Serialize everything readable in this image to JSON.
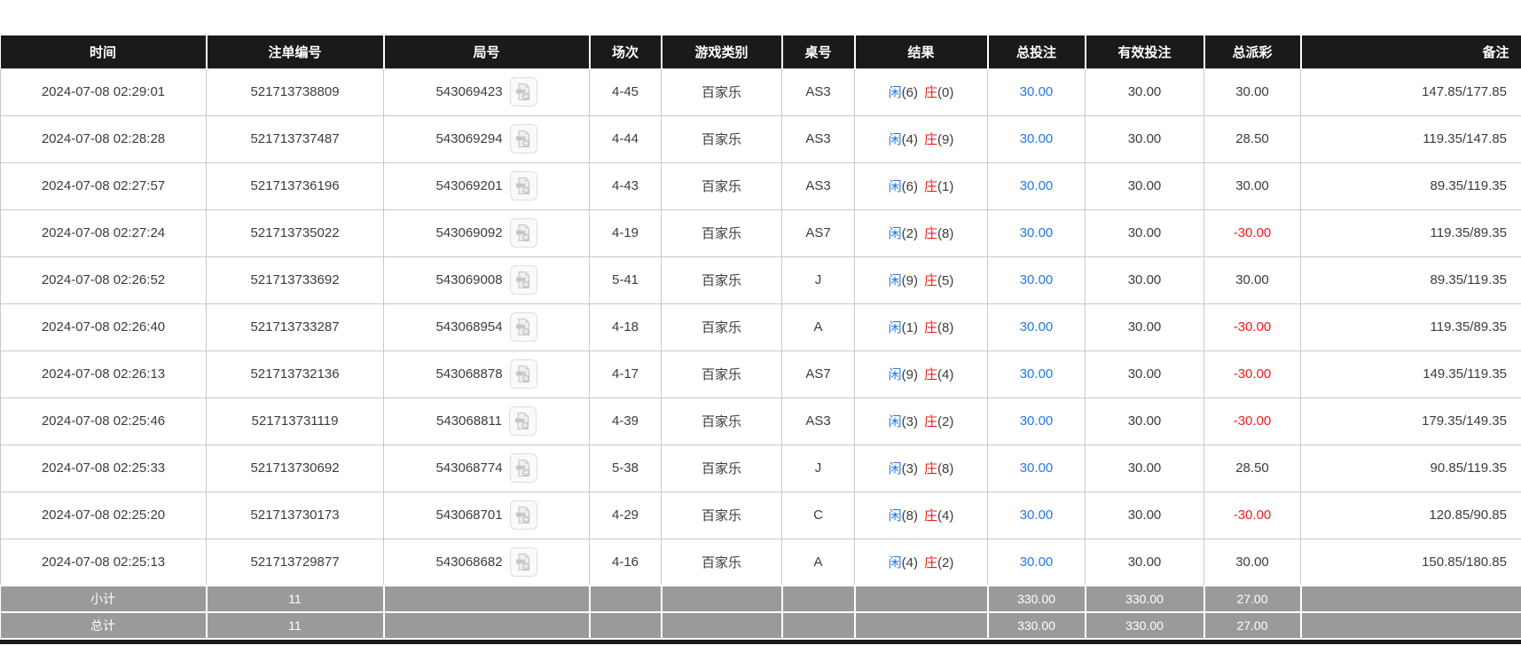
{
  "table": {
    "columns": [
      {
        "key": "time",
        "label": "时间",
        "align": "center"
      },
      {
        "key": "order_no",
        "label": "注单编号",
        "align": "center"
      },
      {
        "key": "round_no",
        "label": "局号",
        "align": "center"
      },
      {
        "key": "session",
        "label": "场次",
        "align": "center"
      },
      {
        "key": "game",
        "label": "游戏类别",
        "align": "center"
      },
      {
        "key": "table_no",
        "label": "桌号",
        "align": "center"
      },
      {
        "key": "result",
        "label": "结果",
        "align": "center"
      },
      {
        "key": "total_bet",
        "label": "总投注",
        "align": "center"
      },
      {
        "key": "valid_bet",
        "label": "有效投注",
        "align": "center"
      },
      {
        "key": "payout",
        "label": "总派彩",
        "align": "center"
      },
      {
        "key": "remark",
        "label": "备注",
        "align": "right"
      }
    ],
    "labels": {
      "player": "闲",
      "banker": "庄"
    },
    "icons": {
      "round_action": "video-replay-icon"
    },
    "rows": [
      {
        "time": "2024-07-08 02:29:01",
        "order_no": "521713738809",
        "round_no": "543069423",
        "session": "4-45",
        "game": "百家乐",
        "table_no": "AS3",
        "result": {
          "player": "(6)",
          "banker": "(0)"
        },
        "total_bet": "30.00",
        "valid_bet": "30.00",
        "payout": "30.00",
        "remark": "147.85/177.85"
      },
      {
        "time": "2024-07-08 02:28:28",
        "order_no": "521713737487",
        "round_no": "543069294",
        "session": "4-44",
        "game": "百家乐",
        "table_no": "AS3",
        "result": {
          "player": "(4)",
          "banker": "(9)"
        },
        "total_bet": "30.00",
        "valid_bet": "30.00",
        "payout": "28.50",
        "remark": "119.35/147.85"
      },
      {
        "time": "2024-07-08 02:27:57",
        "order_no": "521713736196",
        "round_no": "543069201",
        "session": "4-43",
        "game": "百家乐",
        "table_no": "AS3",
        "result": {
          "player": "(6)",
          "banker": "(1)"
        },
        "total_bet": "30.00",
        "valid_bet": "30.00",
        "payout": "30.00",
        "remark": "89.35/119.35"
      },
      {
        "time": "2024-07-08 02:27:24",
        "order_no": "521713735022",
        "round_no": "543069092",
        "session": "4-19",
        "game": "百家乐",
        "table_no": "AS7",
        "result": {
          "player": "(2)",
          "banker": "(8)"
        },
        "total_bet": "30.00",
        "valid_bet": "30.00",
        "payout": "-30.00",
        "remark": "119.35/89.35"
      },
      {
        "time": "2024-07-08 02:26:52",
        "order_no": "521713733692",
        "round_no": "543069008",
        "session": "5-41",
        "game": "百家乐",
        "table_no": "J",
        "result": {
          "player": "(9)",
          "banker": "(5)"
        },
        "total_bet": "30.00",
        "valid_bet": "30.00",
        "payout": "30.00",
        "remark": "89.35/119.35"
      },
      {
        "time": "2024-07-08 02:26:40",
        "order_no": "521713733287",
        "round_no": "543068954",
        "session": "4-18",
        "game": "百家乐",
        "table_no": "A",
        "result": {
          "player": "(1)",
          "banker": "(8)"
        },
        "total_bet": "30.00",
        "valid_bet": "30.00",
        "payout": "-30.00",
        "remark": "119.35/89.35"
      },
      {
        "time": "2024-07-08 02:26:13",
        "order_no": "521713732136",
        "round_no": "543068878",
        "session": "4-17",
        "game": "百家乐",
        "table_no": "AS7",
        "result": {
          "player": "(9)",
          "banker": "(4)"
        },
        "total_bet": "30.00",
        "valid_bet": "30.00",
        "payout": "-30.00",
        "remark": "149.35/119.35"
      },
      {
        "time": "2024-07-08 02:25:46",
        "order_no": "521713731119",
        "round_no": "543068811",
        "session": "4-39",
        "game": "百家乐",
        "table_no": "AS3",
        "result": {
          "player": "(3)",
          "banker": "(2)"
        },
        "total_bet": "30.00",
        "valid_bet": "30.00",
        "payout": "-30.00",
        "remark": "179.35/149.35"
      },
      {
        "time": "2024-07-08 02:25:33",
        "order_no": "521713730692",
        "round_no": "543068774",
        "session": "5-38",
        "game": "百家乐",
        "table_no": "J",
        "result": {
          "player": "(3)",
          "banker": "(8)"
        },
        "total_bet": "30.00",
        "valid_bet": "30.00",
        "payout": "28.50",
        "remark": "90.85/119.35"
      },
      {
        "time": "2024-07-08 02:25:20",
        "order_no": "521713730173",
        "round_no": "543068701",
        "session": "4-29",
        "game": "百家乐",
        "table_no": "C",
        "result": {
          "player": "(8)",
          "banker": "(4)"
        },
        "total_bet": "30.00",
        "valid_bet": "30.00",
        "payout": "-30.00",
        "remark": "120.85/90.85"
      },
      {
        "time": "2024-07-08 02:25:13",
        "order_no": "521713729877",
        "round_no": "543068682",
        "session": "4-16",
        "game": "百家乐",
        "table_no": "A",
        "result": {
          "player": "(4)",
          "banker": "(2)"
        },
        "total_bet": "30.00",
        "valid_bet": "30.00",
        "payout": "30.00",
        "remark": "150.85/180.85"
      }
    ],
    "summary_rows": [
      {
        "label": "小计",
        "count": "11",
        "total_bet": "330.00",
        "valid_bet": "330.00",
        "payout": "27.00"
      },
      {
        "label": "总计",
        "count": "11",
        "total_bet": "330.00",
        "valid_bet": "330.00",
        "payout": "27.00"
      }
    ]
  }
}
